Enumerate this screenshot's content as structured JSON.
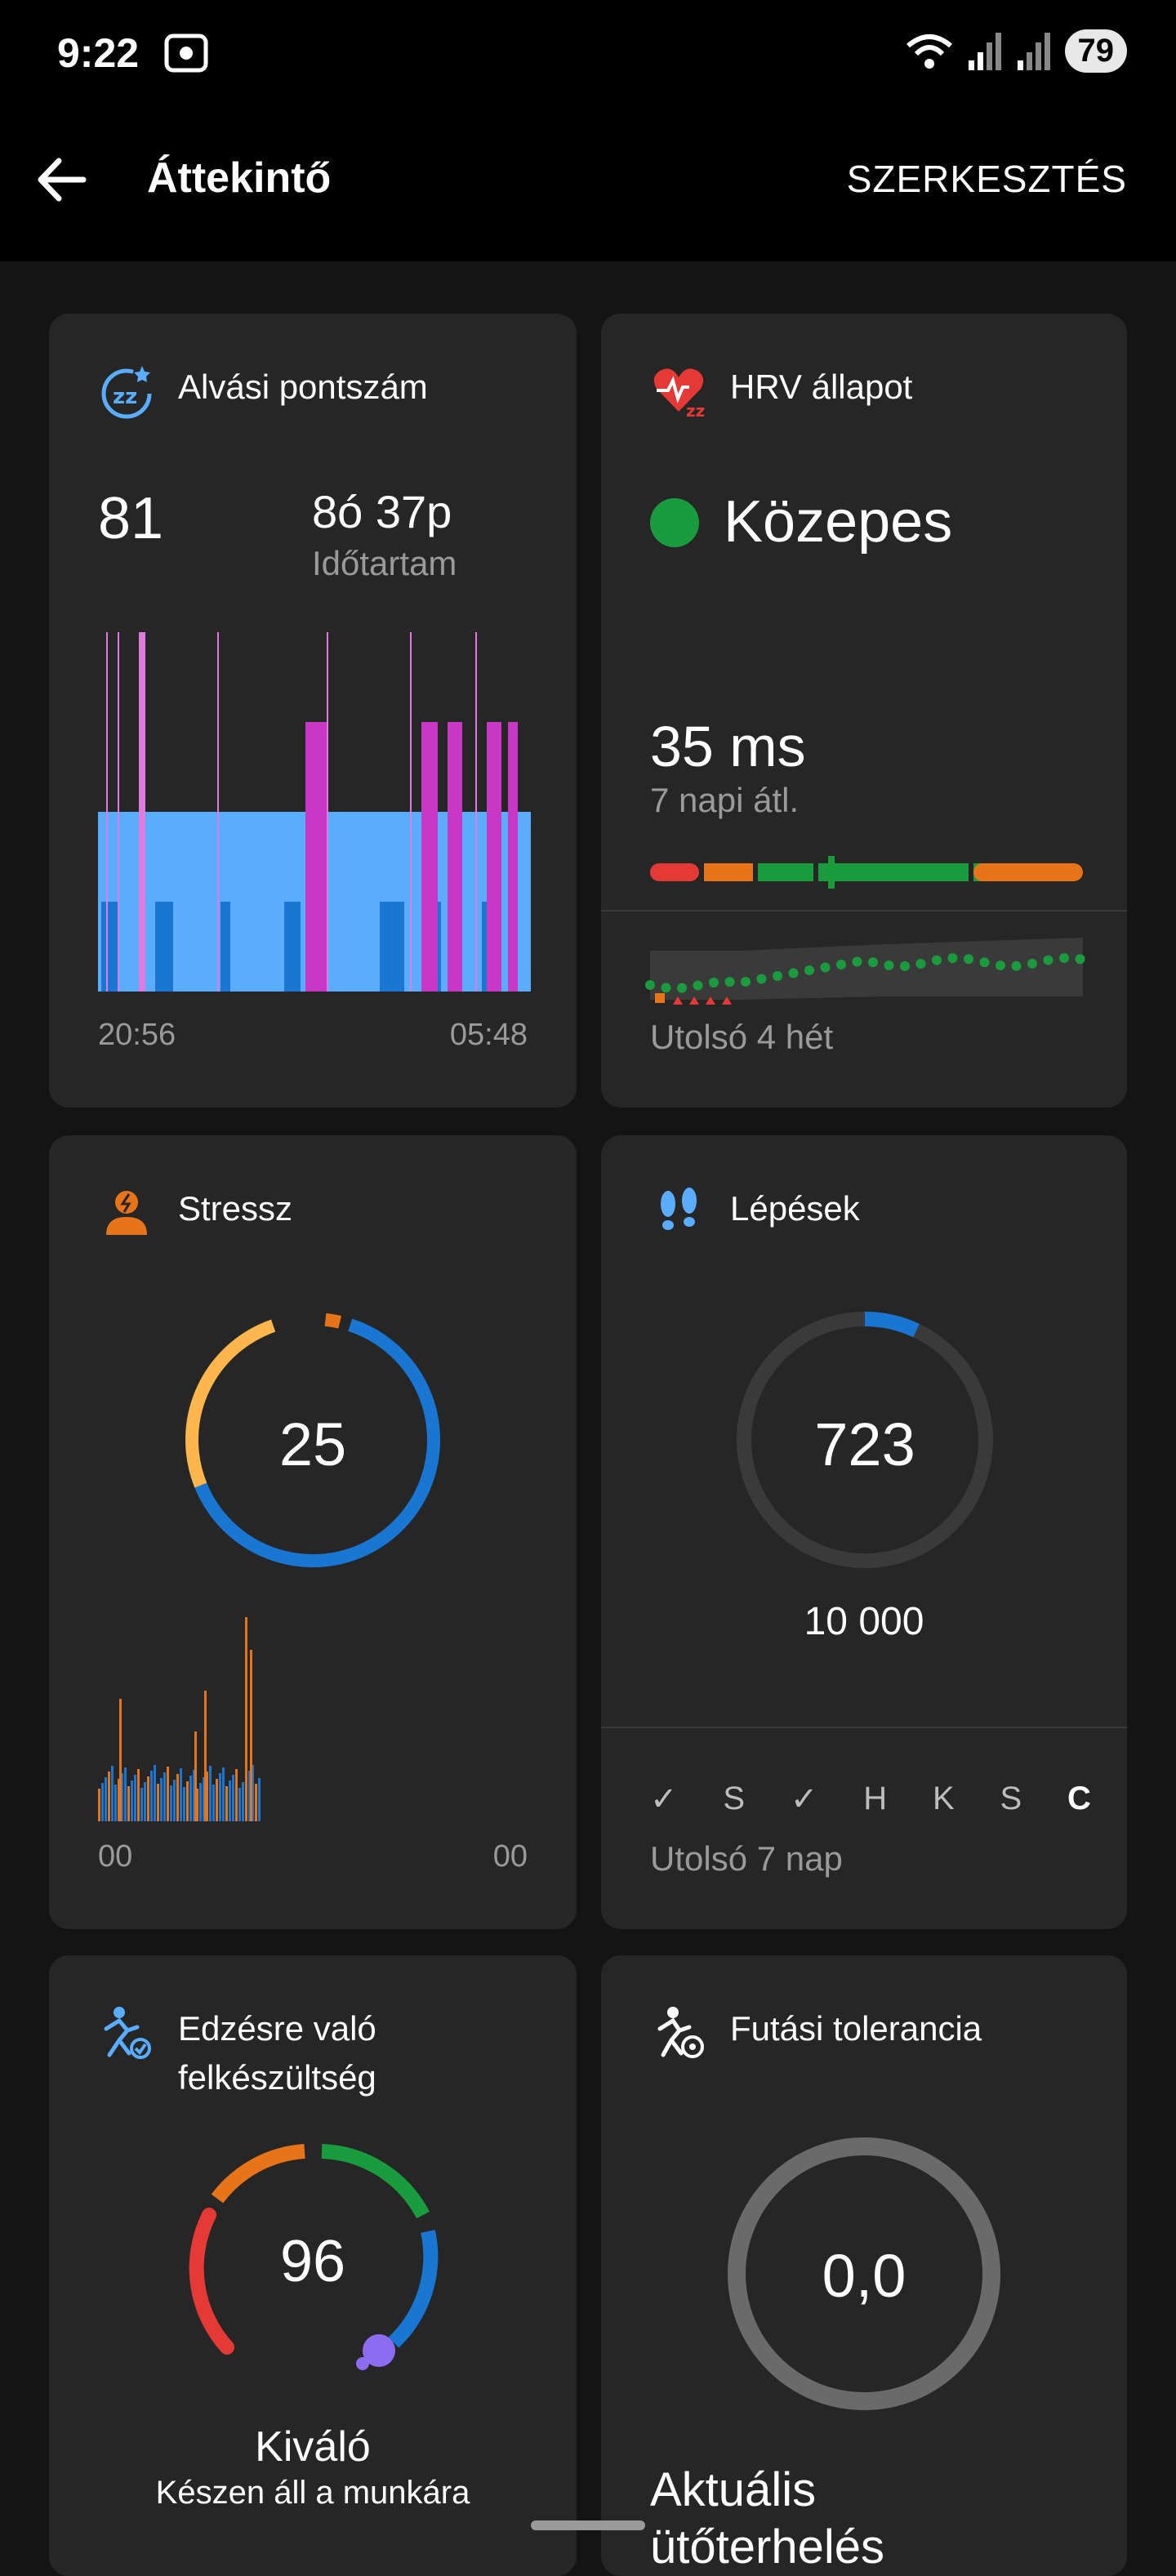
{
  "status": {
    "time": "9:22",
    "battery": "79"
  },
  "header": {
    "title": "Áttekintő",
    "edit": "SZERKESZTÉS"
  },
  "sleep": {
    "title": "Alvási pontszám",
    "score": "81",
    "duration": "8ó 37p",
    "duration_label": "Időtartam",
    "start": "20:56",
    "end": "05:48"
  },
  "hrv": {
    "title": "HRV állapot",
    "status": "Közepes",
    "status_color": "#1a9c3e",
    "value": "35 ms",
    "avg_label": "7 napi átl.",
    "period": "Utolsó 4 hét"
  },
  "stress": {
    "title": "Stressz",
    "value": "25",
    "start": "00",
    "end": "00"
  },
  "steps": {
    "title": "Lépések",
    "value": "723",
    "goal": "10 000",
    "progress": 0.07,
    "days": [
      "✓",
      "S",
      "✓",
      "H",
      "K",
      "S",
      "C"
    ],
    "period": "Utolsó 7 nap"
  },
  "readiness": {
    "title": "Edzésre való felkészültség",
    "value": "96",
    "status": "Kiváló",
    "subtitle": "Készen áll a munkára"
  },
  "running": {
    "title": "Futási tolerancia",
    "value": "0,0",
    "subtitle": "Aktuális ütőterhelés"
  },
  "colors": {
    "accent_blue": "#1976d2",
    "light_blue": "#5aacff",
    "magenta": "#c837c6",
    "orange": "#e8741a",
    "green": "#1a9c3e",
    "red": "#e53935"
  }
}
